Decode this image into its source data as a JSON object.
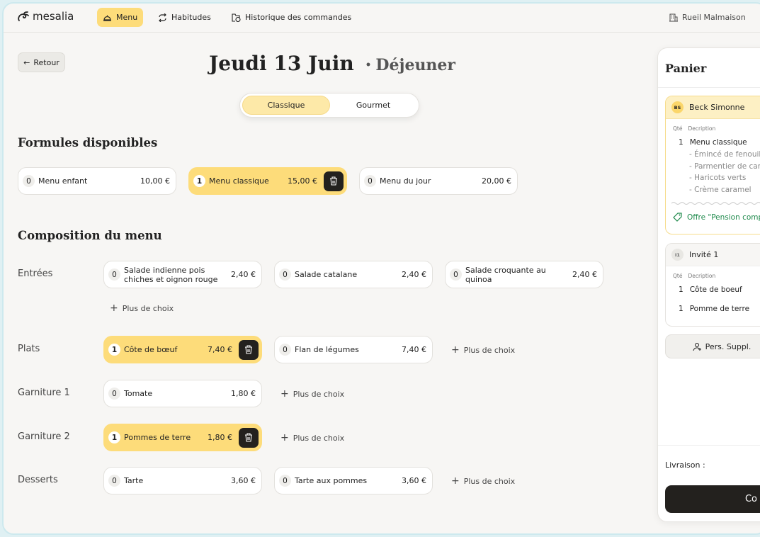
{
  "header": {
    "brand": "mesalia",
    "nav": [
      {
        "label": "Menu",
        "icon": "cloche-icon",
        "active": true
      },
      {
        "label": "Habitudes",
        "icon": "repeat-icon"
      },
      {
        "label": "Historique des commandes",
        "icon": "folder-clock-icon"
      }
    ],
    "location": "Rueil Malmaison"
  },
  "page": {
    "back_label": "Retour",
    "title": "Jeudi 13 Juin",
    "separator": "•",
    "meal": "Déjeuner",
    "tabs": [
      {
        "label": "Classique",
        "active": true
      },
      {
        "label": "Gourmet"
      }
    ]
  },
  "formules": {
    "title": "Formules disponibles",
    "items": [
      {
        "qty": "0",
        "name": "Menu enfant",
        "price": "10,00 €"
      },
      {
        "qty": "1",
        "name": "Menu classique",
        "price": "15,00 €",
        "selected": true
      },
      {
        "qty": "0",
        "name": "Menu du jour",
        "price": "20,00 €"
      }
    ]
  },
  "composition": {
    "title": "Composition du menu",
    "more_label": "Plus de choix",
    "rows": [
      {
        "label": "Entrées",
        "items": [
          {
            "qty": "0",
            "name": "Salade indienne pois chiches et oignon rouge",
            "price": "2,40 €"
          },
          {
            "qty": "0",
            "name": "Salade catalane",
            "price": "2,40 €"
          },
          {
            "qty": "0",
            "name": "Salade croquante au quinoa",
            "price": "2,40 €"
          }
        ]
      },
      {
        "label": "Plats",
        "items": [
          {
            "qty": "1",
            "name": "Côte de bœuf",
            "price": "7,40 €",
            "selected": true
          },
          {
            "qty": "0",
            "name": "Flan de légumes",
            "price": "7,40 €"
          }
        ]
      },
      {
        "label": "Garniture 1",
        "items": [
          {
            "qty": "0",
            "name": "Tomate",
            "price": "1,80 €"
          }
        ]
      },
      {
        "label": "Garniture 2",
        "items": [
          {
            "qty": "1",
            "name": "Pommes de terre",
            "price": "1,80 €",
            "selected": true
          }
        ]
      },
      {
        "label": "Desserts",
        "items": [
          {
            "qty": "0",
            "name": "Tarte",
            "price": "3,60 €"
          },
          {
            "qty": "0",
            "name": "Tarte aux pommes",
            "price": "3,60 €"
          }
        ]
      }
    ]
  },
  "panier": {
    "title": "Panier",
    "col_qty": "Qté",
    "col_desc": "Decription",
    "persons": [
      {
        "initials": "BS",
        "name": "Beck Simonne",
        "lines": [
          {
            "qty": "1",
            "desc": "Menu classique",
            "subs": [
              "- Émincé de fenouil",
              "- Parmentier de can",
              "- Haricots verts",
              "- Crème caramel"
            ]
          }
        ],
        "offer": "Offre \"Pension comp"
      },
      {
        "initials": "I1",
        "name": "Invité 1",
        "lines": [
          {
            "qty": "1",
            "desc": "Côte de boeuf"
          },
          {
            "qty": "1",
            "desc": "Pomme de terre"
          }
        ]
      }
    ],
    "add_person": "Pers. Suppl.",
    "delivery_label": "Livraison :",
    "confirm_label": "Co"
  },
  "colors": {
    "accent": "#fddc7a",
    "dark": "#23211e",
    "offer": "#1f8a4c",
    "background": "#f7f6f4"
  }
}
